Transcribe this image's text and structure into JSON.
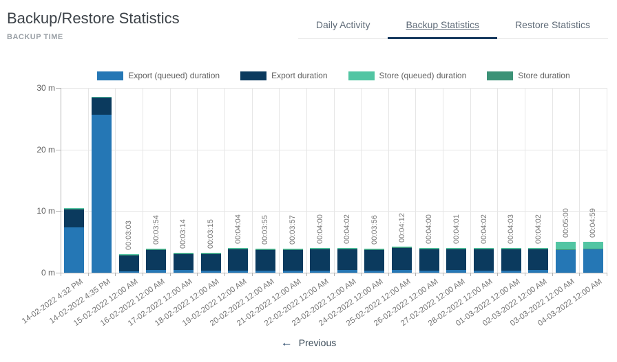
{
  "header": {
    "title": "Backup/Restore Statistics",
    "subtitle": "BACKUP TIME"
  },
  "tabs": [
    {
      "label": "Daily Activity",
      "active": false
    },
    {
      "label": "Backup Statistics",
      "active": true
    },
    {
      "label": "Restore Statistics",
      "active": false
    }
  ],
  "footer": {
    "arrow": "←",
    "previous_label": "Previous"
  },
  "colors": {
    "export_queued": "#2577b5",
    "export": "#0b3a5e",
    "store_queued": "#52c5a3",
    "store": "#3c9277",
    "active_tab_indicator": "#16395e"
  },
  "chart_data": {
    "type": "bar",
    "stacked": true,
    "title": "BACKUP TIME",
    "unit": "minutes",
    "ylim": [
      0,
      30
    ],
    "y_tick_labels": [
      "0 m",
      "10 m",
      "20 m",
      "30 m"
    ],
    "y_tick_values": [
      0,
      10,
      20,
      30
    ],
    "x_label_rotation": -35,
    "grid": true,
    "legend_position": "top",
    "categories": [
      "14-02-2022 4:32 PM",
      "14-02-2022 4:35 PM",
      "15-02-2022 12:00 AM",
      "16-02-2022 12:00 AM",
      "17-02-2022 12:00 AM",
      "18-02-2022 12:00 AM",
      "19-02-2022 12:00 AM",
      "20-02-2022 12:00 AM",
      "21-02-2022 12:00 AM",
      "22-02-2022 12:00 AM",
      "23-02-2022 12:00 AM",
      "24-02-2022 12:00 AM",
      "25-02-2022 12:00 AM",
      "26-02-2022 12:00 AM",
      "27-02-2022 12:00 AM",
      "28-02-2022 12:00 AM",
      "01-03-2022 12:00 AM",
      "02-03-2022 12:00 AM",
      "03-03-2022 12:00 AM",
      "04-03-2022 12:00 AM"
    ],
    "series": [
      {
        "key": "export_queued",
        "name": "Export (queued) duration",
        "color": "#2577b5",
        "values": [
          7.4,
          25.6,
          0.2,
          0.5,
          0.45,
          0.3,
          0.35,
          0.35,
          0.35,
          0.35,
          0.4,
          0.35,
          0.4,
          0.35,
          0.4,
          0.35,
          0.35,
          0.4,
          3.7,
          3.8
        ]
      },
      {
        "key": "export",
        "name": "Export duration",
        "color": "#0b3a5e",
        "values": [
          2.95,
          2.85,
          2.7,
          3.25,
          2.63,
          2.8,
          3.55,
          3.4,
          3.43,
          3.48,
          3.46,
          3.41,
          3.63,
          3.48,
          3.45,
          3.51,
          3.53,
          3.46,
          0,
          0
        ]
      },
      {
        "key": "store_queued",
        "name": "Store (queued) duration",
        "color": "#52c5a3",
        "values": [
          0.1,
          0.1,
          0.1,
          0.1,
          0.1,
          0.1,
          0.12,
          0.12,
          0.12,
          0.12,
          0.12,
          0.12,
          0.12,
          0.12,
          0.12,
          0.12,
          0.12,
          0.12,
          1.2,
          1.1
        ]
      },
      {
        "key": "store",
        "name": "Store duration",
        "color": "#3c9277",
        "values": [
          0.05,
          0.05,
          0.05,
          0.05,
          0.05,
          0.05,
          0.05,
          0.05,
          0.05,
          0.05,
          0.05,
          0.05,
          0.05,
          0.05,
          0.05,
          0.05,
          0.05,
          0.05,
          0.1,
          0.08
        ]
      }
    ],
    "stack_order": [
      "export_queued",
      "export",
      "store",
      "store_queued"
    ],
    "bar_labels": [
      null,
      null,
      "00:03:03",
      "00:03:54",
      "00:03:14",
      "00:03:15",
      "00:04:04",
      "00:03:55",
      "00:03:57",
      "00:04:00",
      "00:04:02",
      "00:03:56",
      "00:04:12",
      "00:04:00",
      "00:04:01",
      "00:04:02",
      "00:04:03",
      "00:04:02",
      "00:05:00",
      "00:04:59"
    ]
  }
}
